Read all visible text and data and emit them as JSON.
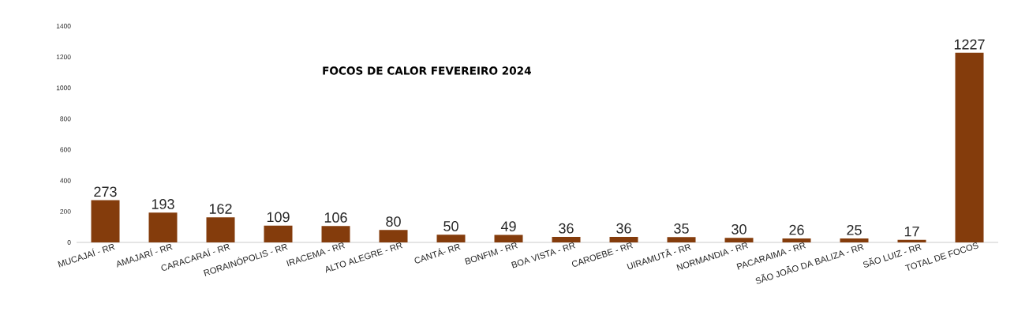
{
  "chart_data": {
    "type": "bar",
    "title": "FOCOS DE CALOR FEVEREIRO 2024",
    "categories": [
      "MUCAJAÍ - RR",
      "AMAJARÍ - RR",
      "CARACARAÍ - RR",
      "RORAINÓPOLIS - RR",
      "IRACEMA - RR",
      "ALTO ALEGRE - RR",
      "CANTÁ- RR",
      "BONFIM - RR",
      "BOA VISTA - RR",
      "CAROEBE - RR",
      "UIRAMUTÃ - RR",
      "NORMANDIA - RR",
      "PACARAIMA - RR",
      "SÃO JOÃO DA BALIZA - RR",
      "SÃO LUIZ - RR",
      "TOTAL DE FOCOS"
    ],
    "values": [
      273,
      193,
      162,
      109,
      106,
      80,
      50,
      49,
      36,
      36,
      35,
      30,
      26,
      25,
      17,
      1227
    ],
    "color": "#843c0c",
    "ylim": [
      0,
      1400
    ],
    "yticks": [
      0,
      200,
      400,
      600,
      800,
      1000,
      1200,
      1400
    ],
    "data_labels": true
  }
}
